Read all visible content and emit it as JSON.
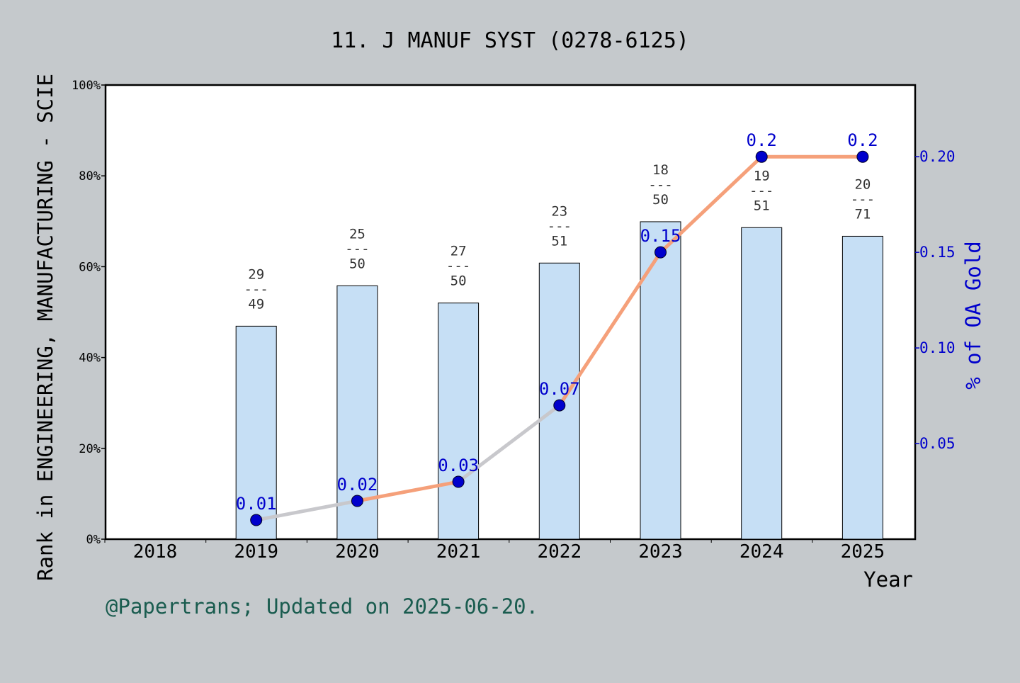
{
  "chart_data": {
    "type": "bar",
    "title": "11. J MANUF SYST (0278-6125)",
    "xlabel": "Year",
    "ylabel": "Rank in ENGINEERING, MANUFACTURING - SCIE",
    "y2label": "% of OA Gold",
    "categories": [
      "2018",
      "2019",
      "2020",
      "2021",
      "2022",
      "2023",
      "2024",
      "2025"
    ],
    "ylim": [
      0,
      100
    ],
    "y_ticks": [
      "0%",
      "20%",
      "40%",
      "60%",
      "80%",
      "100%"
    ],
    "y2lim": [
      0,
      0.2375
    ],
    "y2_ticks": [
      "0.05",
      "0.10",
      "0.15",
      "0.20"
    ],
    "series": [
      {
        "kind": "bar",
        "values": [
          null,
          46.9,
          55.8,
          52.0,
          60.8,
          69.9,
          68.6,
          66.7
        ],
        "labels": [
          null,
          {
            "top": "29",
            "mid": "---",
            "bot": "49"
          },
          {
            "top": "25",
            "mid": "---",
            "bot": "50"
          },
          {
            "top": "27",
            "mid": "---",
            "bot": "50"
          },
          {
            "top": "23",
            "mid": "---",
            "bot": "51"
          },
          {
            "top": "18",
            "mid": "---",
            "bot": "50"
          },
          {
            "top": "19",
            "mid": "---",
            "bot": "51"
          },
          {
            "top": "20",
            "mid": "---",
            "bot": "71"
          }
        ],
        "color": "#c6dff5"
      },
      {
        "kind": "line",
        "values": [
          null,
          0.01,
          0.02,
          0.03,
          0.07,
          0.15,
          0.2,
          0.2
        ],
        "point_labels": [
          null,
          "0.01",
          "0.02",
          "0.03",
          "0.07",
          "0.15",
          "0.2",
          "0.2"
        ],
        "color": "#f5a07a",
        "marker_color": "#0000cc"
      }
    ],
    "grid": false,
    "legend": "none"
  },
  "footer": "@Papertrans; Updated on 2025-06-20.",
  "colors": {
    "background": "#c5c9cc",
    "plot_background": "#ffffff",
    "label_blue": "#0000cc",
    "footer_green": "#1a5c4f"
  }
}
